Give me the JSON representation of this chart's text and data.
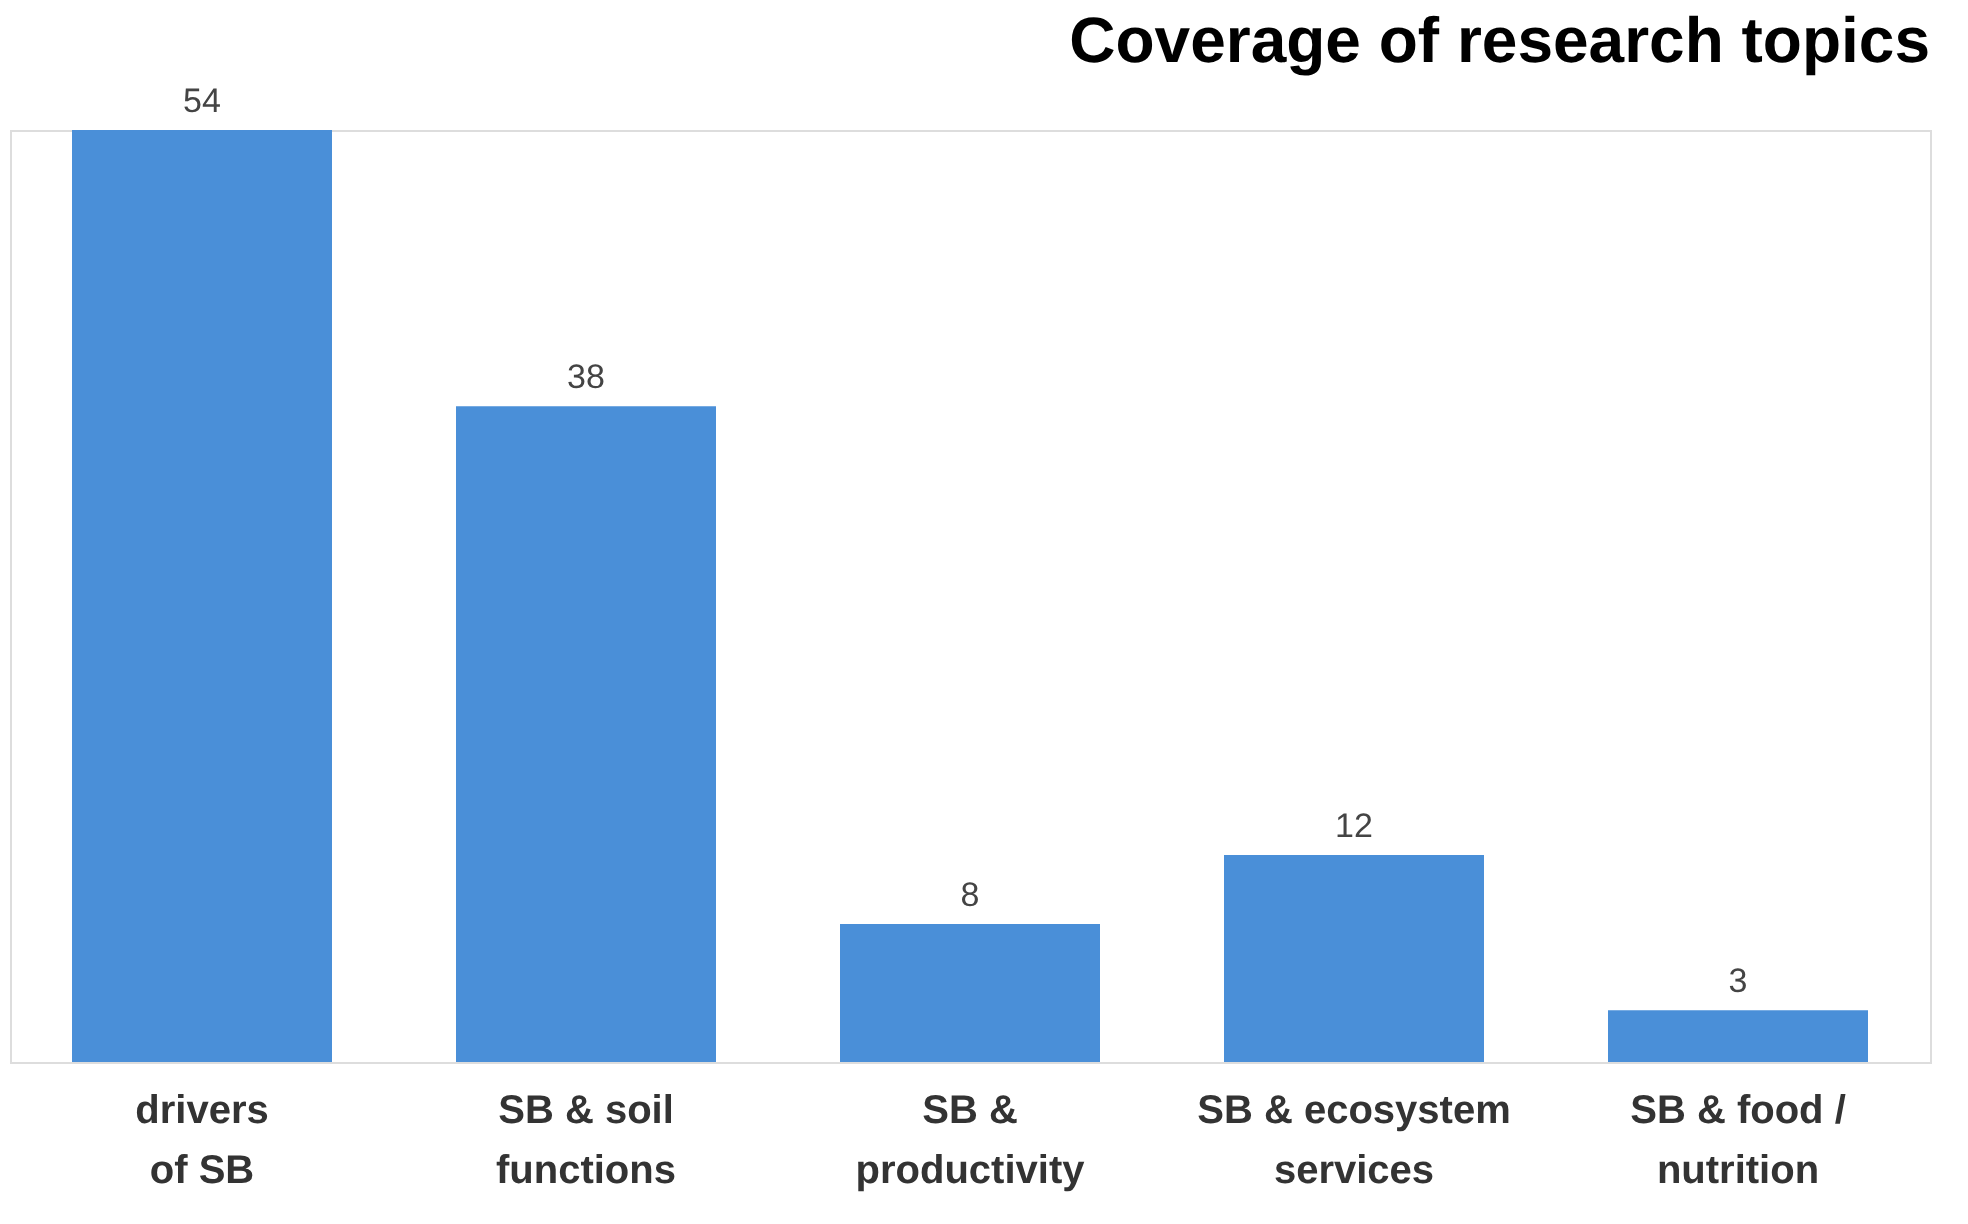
{
  "chart_data": {
    "type": "bar",
    "title": "Coverage of research topics",
    "categories": [
      "drivers\nof SB",
      "SB & soil\nfunctions",
      "SB &\nproductivity",
      "SB & ecosystem\nservices",
      "SB & food /\nnutrition"
    ],
    "values": [
      54,
      38,
      8,
      12,
      3
    ],
    "color": "#4a8fd8",
    "data_labels": true
  }
}
